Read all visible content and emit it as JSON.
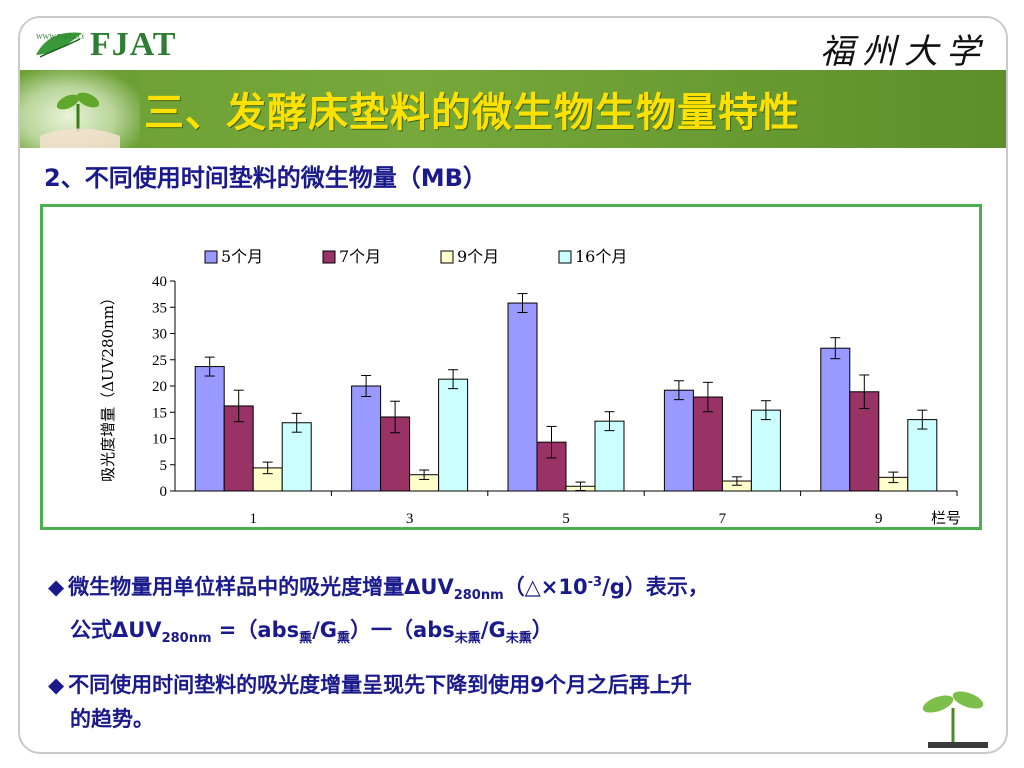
{
  "header": {
    "logo_small": "WWW.FJAT.COM",
    "logo_text": "FJAT",
    "university": "福州大学"
  },
  "title": "三、发酵床垫料的微生物生物量特性",
  "subtitle": "2、不同使用时间垫料的微生物量（MB）",
  "colors": {
    "accent_green": "#4caf50",
    "title_yellow": "#ffe100",
    "text_blue": "#1a1a8c"
  },
  "chart_data": {
    "type": "bar",
    "categories": [
      "1",
      "3",
      "5",
      "7",
      "9"
    ],
    "xlabel": "栏号",
    "ylabel": "吸光度增量（ΔUV280nm）",
    "ylim": [
      0,
      40
    ],
    "yticks": [
      0,
      5,
      10,
      15,
      20,
      25,
      30,
      35,
      40
    ],
    "legend_position": "top",
    "series": [
      {
        "name": "5个月",
        "color": "#9999ff",
        "values": [
          23.7,
          20.0,
          35.8,
          19.2,
          27.2
        ],
        "errors": [
          1.8,
          2.0,
          1.8,
          1.8,
          2.0
        ]
      },
      {
        "name": "7个月",
        "color": "#993366",
        "values": [
          16.2,
          14.1,
          9.3,
          17.9,
          18.9
        ],
        "errors": [
          3.0,
          3.0,
          3.0,
          2.8,
          3.2
        ]
      },
      {
        "name": "9个月",
        "color": "#ffffcc",
        "values": [
          4.4,
          3.1,
          0.9,
          1.9,
          2.6
        ],
        "errors": [
          1.1,
          0.9,
          0.8,
          0.8,
          1.0
        ]
      },
      {
        "name": "16个月",
        "color": "#ccffff",
        "values": [
          13.0,
          21.3,
          13.3,
          15.4,
          13.6
        ],
        "errors": [
          1.8,
          1.8,
          1.8,
          1.8,
          1.8
        ]
      }
    ]
  },
  "bullets": {
    "b1_line1_prefix": "微生物量用单位样品中的吸光度增量ΔUV",
    "b1_line1_sub": "280nm",
    "b1_line1_mid": "（△×10",
    "b1_line1_sup": "-3",
    "b1_line1_suffix": "/g）表示，",
    "b1_line2_prefix": "公式ΔUV",
    "b1_line2_sub1": "280nm",
    "b1_line2_mid1": " =（abs",
    "b1_line2_sub2": "熏",
    "b1_line2_mid2": "/G",
    "b1_line2_sub3": "熏",
    "b1_line2_mid3": "）一（abs",
    "b1_line2_sub4": "未熏",
    "b1_line2_mid4": "/G",
    "b1_line2_sub5": "未熏",
    "b1_line2_suffix": "）",
    "b2_line1": "不同使用时间垫料的吸光度增量呈现先下降到使用9个月之后再上升",
    "b2_line2": "的趋势。"
  }
}
